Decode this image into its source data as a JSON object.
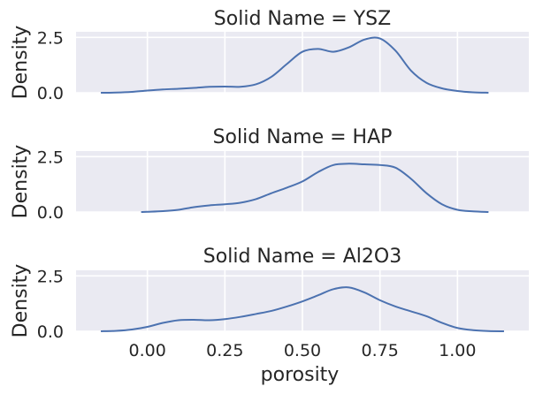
{
  "colors": {
    "panel_background": "#eaeaf2",
    "grid": "#ffffff",
    "line": "#4c72b0",
    "text": "#262626"
  },
  "chart_data": [
    {
      "type": "line",
      "title": "Solid Name = YSZ",
      "xlabel": "",
      "ylabel": "Density",
      "xlim": [
        -0.23,
        1.23
      ],
      "ylim": [
        0,
        2.75
      ],
      "xticks": [
        0.0,
        0.25,
        0.5,
        0.75,
        1.0
      ],
      "yticks": [
        0.0,
        2.5
      ],
      "ytick_labels": [
        "0.0",
        "2.5"
      ],
      "grid": true,
      "series": [
        {
          "x": [
            -0.15,
            -0.1,
            -0.05,
            0.0,
            0.05,
            0.1,
            0.15,
            0.2,
            0.25,
            0.3,
            0.35,
            0.4,
            0.45,
            0.5,
            0.55,
            0.6,
            0.65,
            0.7,
            0.75,
            0.8,
            0.85,
            0.9,
            0.95,
            1.0,
            1.05,
            1.1
          ],
          "y": [
            0.0,
            0.01,
            0.04,
            0.1,
            0.15,
            0.18,
            0.22,
            0.27,
            0.28,
            0.27,
            0.38,
            0.72,
            1.3,
            1.85,
            1.98,
            1.85,
            2.05,
            2.4,
            2.45,
            1.9,
            1.0,
            0.45,
            0.2,
            0.08,
            0.02,
            0.0
          ]
        }
      ]
    },
    {
      "type": "line",
      "title": "Solid Name = HAP",
      "xlabel": "",
      "ylabel": "Density",
      "xlim": [
        -0.23,
        1.23
      ],
      "ylim": [
        0,
        2.75
      ],
      "xticks": [
        0.0,
        0.25,
        0.5,
        0.75,
        1.0
      ],
      "yticks": [
        0.0,
        2.5
      ],
      "ytick_labels": [
        "0.0",
        "2.5"
      ],
      "grid": true,
      "series": [
        {
          "x": [
            -0.02,
            0.0,
            0.05,
            0.1,
            0.15,
            0.2,
            0.25,
            0.3,
            0.35,
            0.4,
            0.45,
            0.5,
            0.55,
            0.6,
            0.65,
            0.7,
            0.75,
            0.8,
            0.85,
            0.9,
            0.95,
            1.0,
            1.05,
            1.1
          ],
          "y": [
            0.0,
            0.01,
            0.04,
            0.1,
            0.22,
            0.3,
            0.35,
            0.42,
            0.58,
            0.85,
            1.1,
            1.38,
            1.8,
            2.12,
            2.18,
            2.15,
            2.12,
            2.0,
            1.5,
            0.85,
            0.35,
            0.1,
            0.03,
            0.0
          ]
        }
      ]
    },
    {
      "type": "line",
      "title": "Solid Name = Al2O3",
      "xlabel": "porosity",
      "ylabel": "Density",
      "xlim": [
        -0.23,
        1.23
      ],
      "ylim": [
        0,
        2.75
      ],
      "xticks": [
        0.0,
        0.25,
        0.5,
        0.75,
        1.0
      ],
      "xtick_labels": [
        "0.00",
        "0.25",
        "0.50",
        "0.75",
        "1.00"
      ],
      "yticks": [
        0.0,
        2.5
      ],
      "ytick_labels": [
        "0.0",
        "2.5"
      ],
      "grid": true,
      "series": [
        {
          "x": [
            -0.15,
            -0.1,
            -0.05,
            0.0,
            0.05,
            0.1,
            0.15,
            0.2,
            0.25,
            0.3,
            0.35,
            0.4,
            0.45,
            0.5,
            0.55,
            0.6,
            0.65,
            0.7,
            0.75,
            0.8,
            0.85,
            0.9,
            0.95,
            1.0,
            1.05,
            1.1,
            1.15
          ],
          "y": [
            0.0,
            0.02,
            0.08,
            0.2,
            0.38,
            0.5,
            0.52,
            0.5,
            0.55,
            0.65,
            0.78,
            0.92,
            1.12,
            1.35,
            1.62,
            1.9,
            1.98,
            1.75,
            1.4,
            1.12,
            0.9,
            0.68,
            0.38,
            0.15,
            0.05,
            0.01,
            0.0
          ]
        }
      ]
    }
  ]
}
